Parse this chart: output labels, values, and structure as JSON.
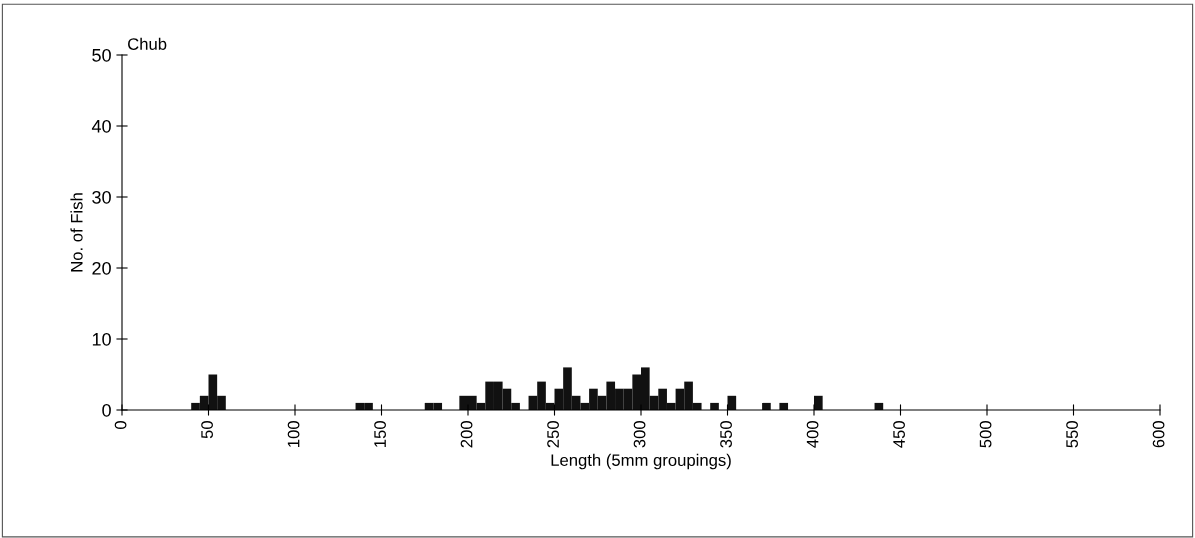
{
  "chart_data": {
    "type": "histogram",
    "xlabel": "Length (5mm groupings)",
    "ylabel": "No. of Fish",
    "annotations": [
      "Chub"
    ],
    "bins": [
      40,
      45,
      50,
      55,
      60,
      65,
      70,
      75,
      80,
      85,
      90,
      95,
      100,
      105,
      110,
      115,
      120,
      125,
      130,
      135,
      140,
      145,
      150,
      155,
      160,
      165,
      170,
      175,
      180,
      185,
      190,
      195,
      200,
      205,
      210,
      215,
      220,
      225,
      230,
      235,
      240,
      245,
      250,
      255,
      260,
      265,
      270,
      275,
      280,
      285,
      290,
      295,
      300,
      305,
      310,
      315,
      320,
      325,
      330,
      335,
      340,
      345,
      350,
      355,
      360,
      365,
      370,
      375,
      380,
      385,
      390,
      395,
      400,
      405,
      410,
      415,
      420,
      425,
      430,
      435,
      440
    ],
    "values": [
      1,
      2,
      5,
      2,
      0,
      0,
      0,
      0,
      0,
      0,
      0,
      0,
      0,
      0,
      0,
      0,
      0,
      0,
      0,
      1,
      1,
      0,
      0,
      0,
      0,
      0,
      0,
      1,
      1,
      0,
      0,
      2,
      2,
      1,
      4,
      4,
      3,
      1,
      0,
      2,
      4,
      1,
      3,
      6,
      2,
      1,
      3,
      2,
      4,
      3,
      3,
      5,
      6,
      2,
      3,
      1,
      3,
      4,
      1,
      0,
      1,
      0,
      2,
      0,
      0,
      0,
      1,
      0,
      1,
      0,
      0,
      0,
      2,
      0,
      0,
      0,
      0,
      0,
      0,
      1
    ],
    "color": "#111111",
    "xlim": [
      0,
      600
    ],
    "ylim": [
      0,
      50
    ],
    "xticks": [
      0,
      50,
      100,
      150,
      200,
      250,
      300,
      350,
      400,
      450,
      500,
      550,
      600
    ],
    "yticks": [
      0,
      10,
      20,
      30,
      40,
      50
    ],
    "grid": false,
    "legend": false
  }
}
